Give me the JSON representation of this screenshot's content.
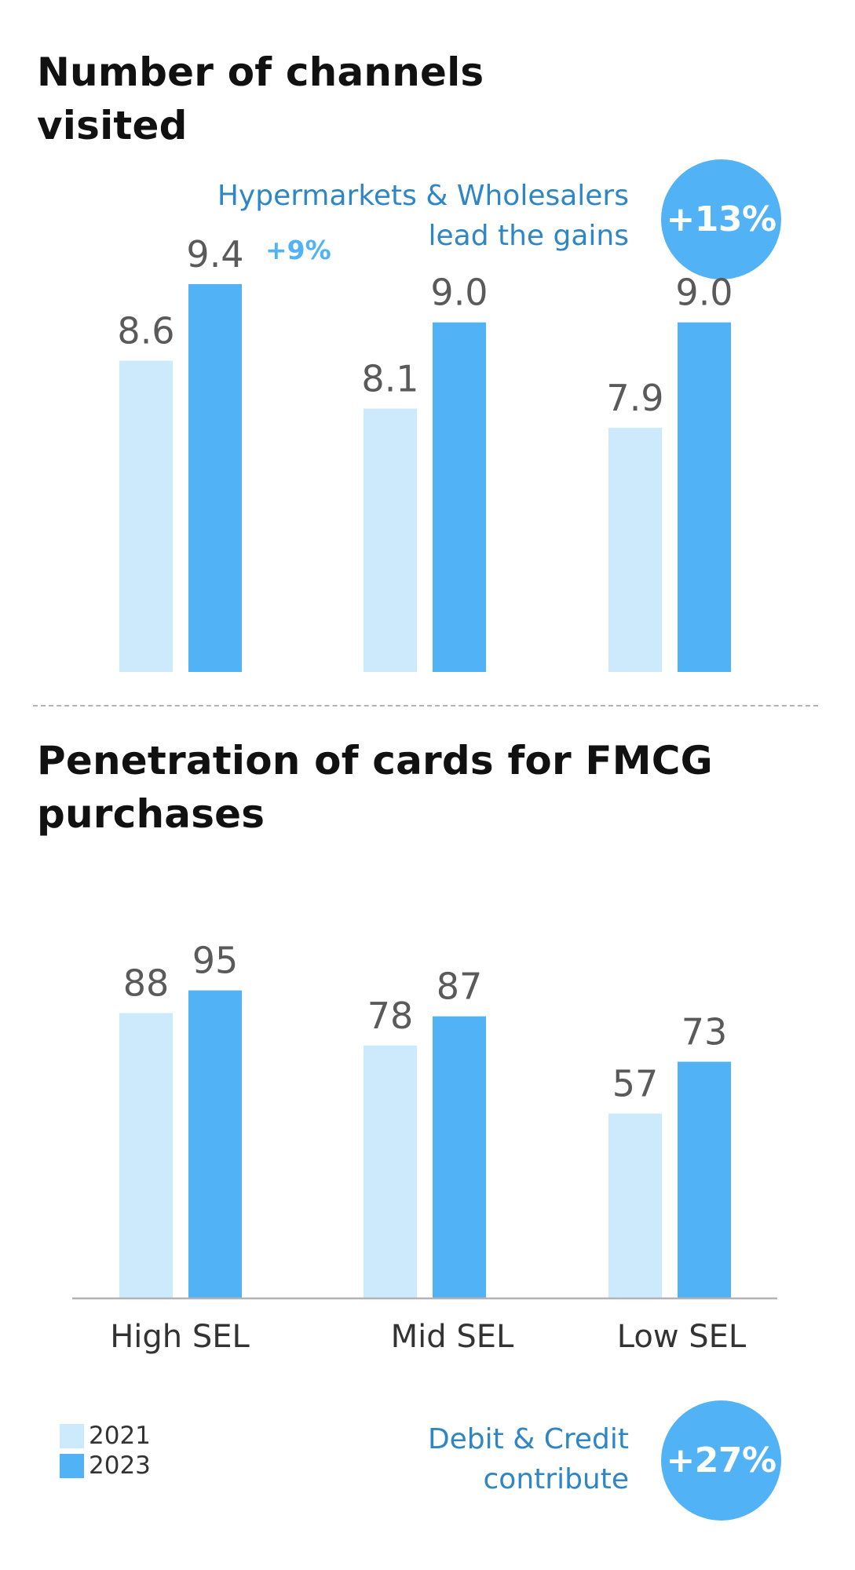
{
  "colors": {
    "series_2021": "#cceafc",
    "series_2023": "#52b2f6",
    "callout_text": "#2f86c6",
    "title_text": "#111111",
    "value_text": "#5a5a5a",
    "axis": "#b3b3b3"
  },
  "chart_data": [
    {
      "type": "bar",
      "title": "Number of channels visited",
      "categories": [
        "High SEL",
        "Mid SEL",
        "Low SEL"
      ],
      "series": [
        {
          "name": "2021",
          "values": [
            8.6,
            8.1,
            7.9
          ]
        },
        {
          "name": "2023",
          "values": [
            9.4,
            9.0,
            9.0
          ]
        }
      ],
      "value_labels": {
        "2021": [
          "8.6",
          "8.1",
          "7.9"
        ],
        "2023": [
          "9.4",
          "9.0",
          "9.0"
        ]
      },
      "annotation": "+9%",
      "callout": {
        "lines": [
          "Hypermarkets & Wholesalers",
          "lead the gains"
        ],
        "badge": "+13%"
      },
      "baseline_visible": false
    },
    {
      "type": "bar",
      "title": "Penetration of cards for FMCG purchases",
      "categories": [
        "High SEL",
        "Mid SEL",
        "Low SEL"
      ],
      "series": [
        {
          "name": "2021",
          "values": [
            88,
            78,
            57
          ]
        },
        {
          "name": "2023",
          "values": [
            95,
            87,
            73
          ]
        }
      ],
      "value_labels": {
        "2021": [
          "88",
          "78",
          "57"
        ],
        "2023": [
          "95",
          "87",
          "73"
        ]
      },
      "ylim": [
        0,
        100
      ],
      "callout": {
        "lines": [
          "Debit & Credit",
          "contribute"
        ],
        "badge": "+27%"
      },
      "baseline_visible": true
    }
  ],
  "legend": {
    "placement": "bottom-left",
    "items": [
      "2021",
      "2023"
    ]
  }
}
